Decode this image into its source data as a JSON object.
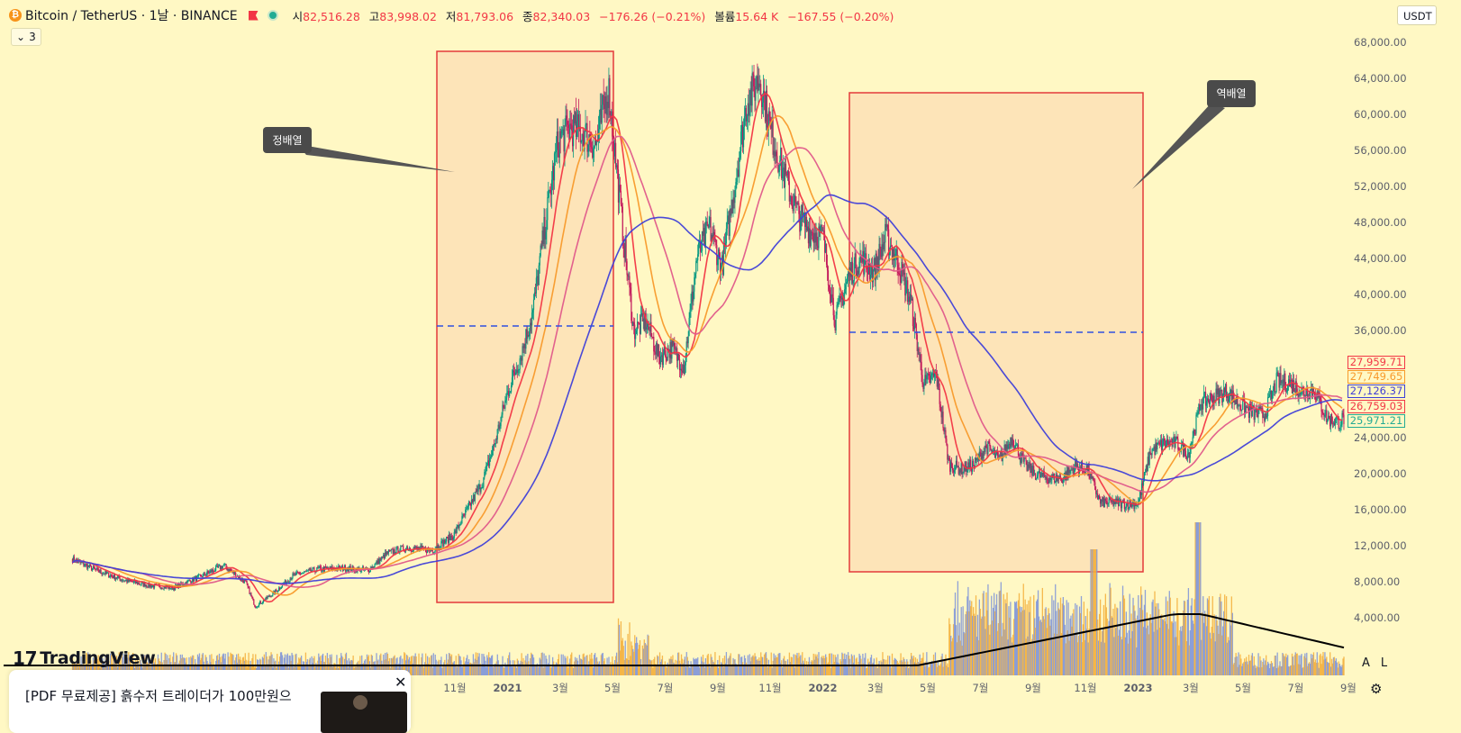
{
  "header": {
    "symbol": "Bitcoin / TetherUS · 1날 · BINANCE",
    "open_label": "시",
    "open": "82,516.28",
    "high_label": "고",
    "high": "83,998.02",
    "low_label": "저",
    "low": "81,793.06",
    "close_label": "종",
    "close": "82,340.03",
    "change": "−176.26 (−0.21%)",
    "volume_label": "볼륨",
    "volume": "15.64 K",
    "volume_change": "−167.55 (−0.20%)"
  },
  "indicator_toggle": {
    "count": "3"
  },
  "currency": "USDT",
  "logo": "TradingView",
  "scale_buttons": [
    "A",
    "L"
  ],
  "ad": {
    "text": "[PDF 무료제공] 흙수저 트레이더가 100만원으"
  },
  "price_tags": [
    {
      "value": "27,959.71",
      "color": "#f23645"
    },
    {
      "value": "27,749.65",
      "color": "#f89a2b"
    },
    {
      "value": "27,126.37",
      "color": "#3f3fd6"
    },
    {
      "value": "26,759.03",
      "color": "#f23645"
    },
    {
      "value": "25,971.21",
      "color": "#22ab94"
    }
  ],
  "annotations": [
    {
      "text": "정배열"
    },
    {
      "text": "역배열"
    }
  ],
  "chart_data": {
    "type": "line",
    "yticks": [
      4000,
      8000,
      12000,
      16000,
      20000,
      24000,
      36000,
      40000,
      44000,
      48000,
      52000,
      56000,
      60000,
      64000,
      68000
    ],
    "ytick_labels": [
      "4,000.00",
      "8,000.00",
      "12,000.00",
      "16,000.00",
      "20,000.00",
      "24,000.00",
      "36,000.00",
      "40,000.00",
      "44,000.00",
      "48,000.00",
      "52,000.00",
      "56,000.00",
      "60,000.00",
      "64,000.00",
      "68,000.00"
    ],
    "x_labels": [
      {
        "label": "11월",
        "t": 2020.833
      },
      {
        "label": "2021",
        "t": 2021.0
      },
      {
        "label": "3월",
        "t": 2021.167
      },
      {
        "label": "5월",
        "t": 2021.333
      },
      {
        "label": "7월",
        "t": 2021.5
      },
      {
        "label": "9월",
        "t": 2021.667
      },
      {
        "label": "11월",
        "t": 2021.833
      },
      {
        "label": "2022",
        "t": 2022.0
      },
      {
        "label": "3월",
        "t": 2022.167
      },
      {
        "label": "5월",
        "t": 2022.333
      },
      {
        "label": "7월",
        "t": 2022.5
      },
      {
        "label": "9월",
        "t": 2022.667
      },
      {
        "label": "11월",
        "t": 2022.833
      },
      {
        "label": "2023",
        "t": 2023.0
      },
      {
        "label": "3월",
        "t": 2023.167
      },
      {
        "label": "5월",
        "t": 2023.333
      },
      {
        "label": "7월",
        "t": 2023.5
      },
      {
        "label": "9월",
        "t": 2023.667
      }
    ],
    "price": {
      "t": [
        2019.62,
        2019.7,
        2019.78,
        2019.86,
        2019.94,
        2020.02,
        2020.1,
        2020.17,
        2020.2,
        2020.26,
        2020.32,
        2020.4,
        2020.48,
        2020.56,
        2020.62,
        2020.68,
        2020.76,
        2020.83,
        2020.88,
        2020.92,
        2020.96,
        2021.0,
        2021.04,
        2021.08,
        2021.12,
        2021.16,
        2021.2,
        2021.24,
        2021.28,
        2021.32,
        2021.36,
        2021.4,
        2021.44,
        2021.48,
        2021.52,
        2021.56,
        2021.6,
        2021.64,
        2021.68,
        2021.72,
        2021.76,
        2021.8,
        2021.84,
        2021.88,
        2021.92,
        2021.96,
        2022.0,
        2022.04,
        2022.08,
        2022.12,
        2022.16,
        2022.2,
        2022.24,
        2022.28,
        2022.32,
        2022.36,
        2022.4,
        2022.44,
        2022.48,
        2022.52,
        2022.56,
        2022.6,
        2022.64,
        2022.68,
        2022.72,
        2022.76,
        2022.8,
        2022.84,
        2022.88,
        2022.92,
        2022.96,
        2023.0,
        2023.04,
        2023.08,
        2023.12,
        2023.16,
        2023.2,
        2023.24,
        2023.28,
        2023.32,
        2023.36,
        2023.4,
        2023.44,
        2023.48,
        2023.52,
        2023.56,
        2023.6,
        2023.64,
        2023.68
      ],
      "close": [
        10500,
        9200,
        8200,
        7600,
        7300,
        8500,
        9800,
        7900,
        5200,
        6800,
        8700,
        9400,
        9500,
        9300,
        11200,
        11800,
        11500,
        13200,
        16500,
        19000,
        23500,
        29000,
        33000,
        38000,
        48000,
        57000,
        58500,
        58000,
        56500,
        63000,
        49000,
        36000,
        37000,
        33000,
        34000,
        32000,
        44000,
        47500,
        43000,
        52000,
        61500,
        64000,
        57500,
        53000,
        49000,
        47000,
        46500,
        37000,
        42000,
        44000,
        42500,
        46500,
        43500,
        39000,
        30000,
        31000,
        21000,
        20500,
        21000,
        23000,
        21500,
        24000,
        21000,
        19800,
        19500,
        19500,
        20800,
        20500,
        16800,
        16800,
        16600,
        16700,
        22500,
        23300,
        23400,
        22200,
        28000,
        28500,
        29200,
        27800,
        26800,
        26500,
        30300,
        30100,
        29200,
        29300,
        26100,
        25800,
        27000
      ]
    },
    "moving_averages": [
      {
        "color": "#f23645",
        "period": "short"
      },
      {
        "color": "#f89a2b",
        "period": "mid"
      },
      {
        "color": "#e05a8a",
        "period": "long"
      },
      {
        "color": "#4040d8",
        "period": "longest"
      }
    ],
    "volume_scale_max": 150000
  }
}
